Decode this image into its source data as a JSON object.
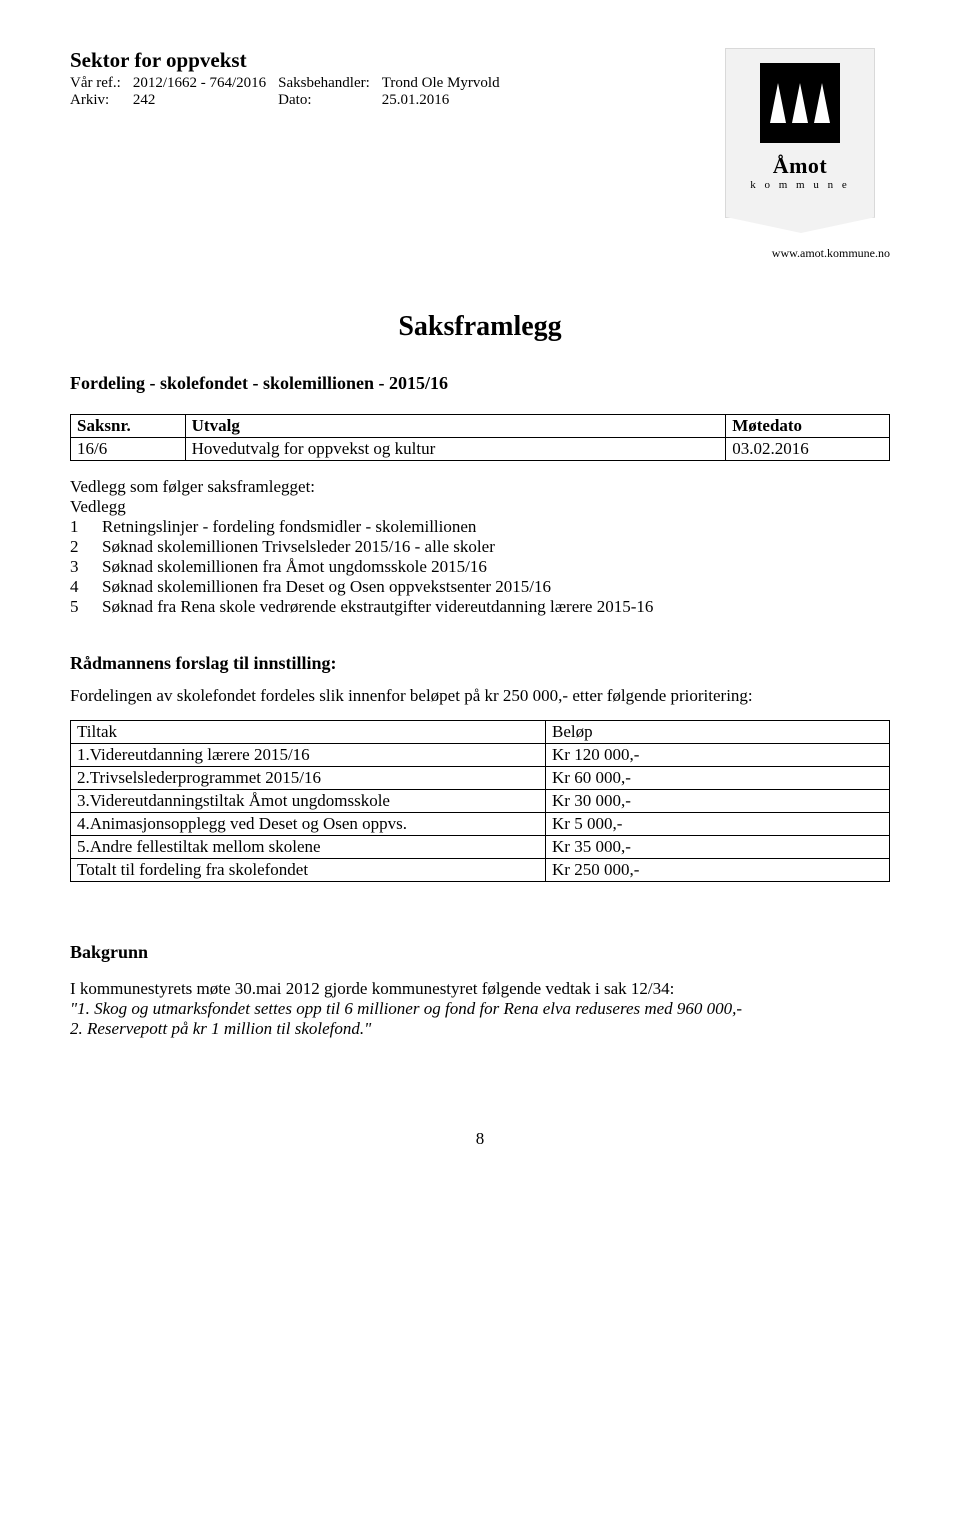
{
  "header": {
    "sektor": "Sektor for oppvekst",
    "var_ref_label": "Vår ref.:",
    "var_ref_value": "2012/1662 - 764/2016",
    "saksbehandler_label": "Saksbehandler:",
    "saksbehandler_value": "Trond Ole Myrvold",
    "arkiv_label": "Arkiv:",
    "arkiv_value": "242",
    "dato_label": "Dato:",
    "dato_value": "25.01.2016"
  },
  "logo": {
    "name": "Åmot",
    "sub": "k o m m u n e",
    "url": "www.amot.kommune.no"
  },
  "main_title": "Saksframlegg",
  "case_title": "Fordeling - skolefondet -  skolemillionen - 2015/16",
  "utvalg_table": {
    "headers": {
      "saksnr": "Saksnr.",
      "utvalg": "Utvalg",
      "motedato": "Møtedato"
    },
    "rows": [
      {
        "saksnr": "16/6",
        "utvalg": "Hovedutvalg for oppvekst og kultur",
        "motedato": "03.02.2016"
      }
    ]
  },
  "vedlegg_section": {
    "title": "Vedlegg som følger saksframlegget:",
    "subtitle": "Vedlegg",
    "items": [
      {
        "num": "1",
        "text": "Retningslinjer - fordeling fondsmidler - skolemillionen"
      },
      {
        "num": "2",
        "text": "Søknad skolemillionen Trivselsleder 2015/16 - alle skoler"
      },
      {
        "num": "3",
        "text": "Søknad skolemillionen fra Åmot ungdomsskole 2015/16"
      },
      {
        "num": "4",
        "text": "Søknad skolemillionen fra Deset og Osen oppvekstsenter 2015/16"
      },
      {
        "num": "5",
        "text": "Søknad fra Rena skole vedrørende ekstrautgifter videreutdanning lærere 2015-16"
      }
    ]
  },
  "radmann": {
    "heading": "Rådmannens forslag til innstilling:",
    "intro": "Fordelingen av skolefondet fordeles slik innenfor beløpet på kr 250 000,- etter følgende prioritering:"
  },
  "tiltak_table": {
    "headers": {
      "tiltak": "Tiltak",
      "belop": "Beløp"
    },
    "rows": [
      {
        "tiltak": "1.Videreutdanning lærere 2015/16",
        "belop": "Kr 120 000,-"
      },
      {
        "tiltak": "2.Trivselslederprogrammet 2015/16",
        "belop": "Kr   60 000,-"
      },
      {
        "tiltak": "3.Videreutdanningstiltak Åmot ungdomsskole",
        "belop": "Kr   30 000,-"
      },
      {
        "tiltak": "4.Animasjonsopplegg ved Deset og Osen oppvs.",
        "belop": "Kr     5 000,-"
      },
      {
        "tiltak": "5.Andre fellestiltak mellom skolene",
        "belop": "Kr   35 000,-"
      },
      {
        "tiltak": "Totalt til fordeling fra skolefondet",
        "belop": "Kr 250 000,-"
      }
    ]
  },
  "bakgrunn": {
    "heading": "Bakgrunn",
    "line1": "I kommunestyrets møte 30.mai 2012 gjorde kommunestyret følgende vedtak i sak 12/34:",
    "quote1": "\"1. Skog og utmarksfondet settes opp til 6 millioner og fond for Rena elva reduseres med 960 000,-",
    "quote2": "2. Reservepott på kr 1 million til skolefond.\""
  },
  "page_number": "8"
}
